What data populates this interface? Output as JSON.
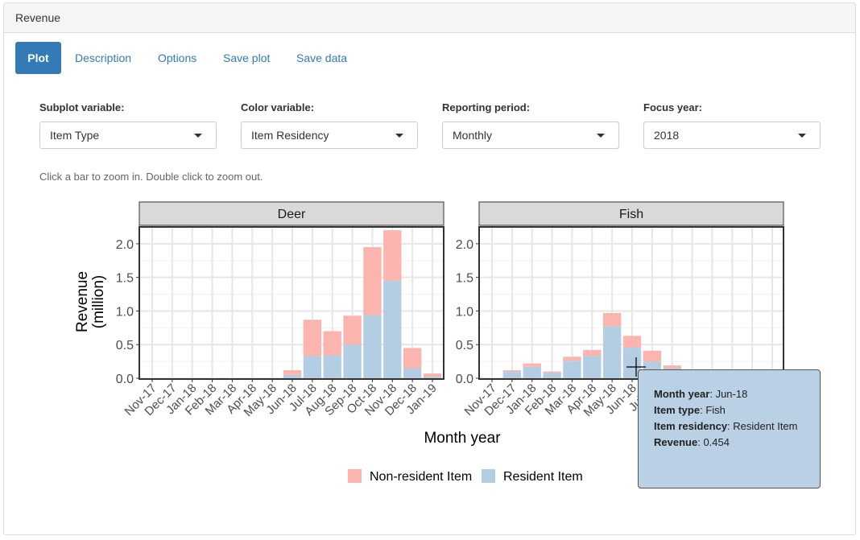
{
  "panel": {
    "title": "Revenue"
  },
  "tabs": [
    {
      "label": "Plot",
      "active": true
    },
    {
      "label": "Description"
    },
    {
      "label": "Options"
    },
    {
      "label": "Save plot"
    },
    {
      "label": "Save data"
    }
  ],
  "controls": {
    "subplot": {
      "label": "Subplot variable:",
      "value": "Item Type"
    },
    "color": {
      "label": "Color variable:",
      "value": "Item Residency"
    },
    "period": {
      "label": "Reporting period:",
      "value": "Monthly"
    },
    "focus": {
      "label": "Focus year:",
      "value": "2018"
    }
  },
  "hint": "Click a bar to zoom in. Double click to zoom out.",
  "tooltip": {
    "month_label": "Month year",
    "month_value": "Jun-18",
    "type_label": "Item type",
    "type_value": "Fish",
    "residency_label": "Item residency",
    "residency_value": "Resident Item",
    "revenue_label": "Revenue",
    "revenue_value": "0.454"
  },
  "chart_data": {
    "type": "bar",
    "stacked": true,
    "xlabel": "Month year",
    "ylabel_lines": [
      "Revenue",
      "(million)"
    ],
    "ylim": [
      0,
      2.25
    ],
    "yticks": [
      0.0,
      0.5,
      1.0,
      1.5,
      2.0
    ],
    "ytick_labels": [
      "0.0",
      "0.5",
      "1.0",
      "1.5",
      "2.0"
    ],
    "grid": true,
    "legend_position": "bottom",
    "categories": [
      "Nov-17",
      "Dec-17",
      "Jan-18",
      "Feb-18",
      "Mar-18",
      "Apr-18",
      "May-18",
      "Jun-18",
      "Jul-18",
      "Aug-18",
      "Sep-18",
      "Oct-18",
      "Nov-18",
      "Dec-18",
      "Jan-19"
    ],
    "series_legend": [
      {
        "name": "Non-resident Item",
        "color": "#fbb4ae"
      },
      {
        "name": "Resident Item",
        "color": "#b3cde3"
      }
    ],
    "facets": [
      {
        "name": "Deer",
        "resident": [
          0,
          0,
          0,
          0,
          0,
          0,
          0,
          0.05,
          0.33,
          0.34,
          0.5,
          0.94,
          1.45,
          0.15,
          0.02
        ],
        "non_resident": [
          0,
          0,
          0,
          0,
          0,
          0,
          0,
          0.07,
          0.54,
          0.36,
          0.43,
          1.01,
          0.75,
          0.3,
          0.05
        ]
      },
      {
        "name": "Fish",
        "resident": [
          0,
          0.1,
          0.17,
          0.08,
          0.26,
          0.33,
          0.77,
          0.454,
          0.25,
          0.15,
          0.08,
          0.03,
          0.02,
          0.01,
          0
        ],
        "non_resident": [
          0,
          0.02,
          0.05,
          0.02,
          0.06,
          0.09,
          0.2,
          0.176,
          0.16,
          0.04,
          0.02,
          0.01,
          0,
          0,
          0
        ]
      }
    ]
  }
}
